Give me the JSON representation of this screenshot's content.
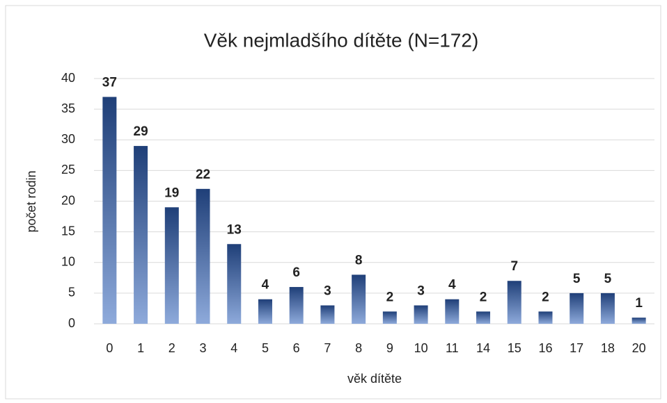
{
  "chart_data": {
    "type": "bar",
    "title": "Věk nejmladšího dítěte (N=172)",
    "x_label": "věk dítěte",
    "y_label": "počet rodin",
    "categories": [
      "0",
      "1",
      "2",
      "3",
      "4",
      "5",
      "6",
      "7",
      "8",
      "9",
      "10",
      "11",
      "14",
      "15",
      "16",
      "17",
      "18",
      "20"
    ],
    "values": [
      37,
      29,
      19,
      22,
      13,
      4,
      6,
      3,
      8,
      2,
      3,
      4,
      2,
      7,
      2,
      5,
      5,
      1
    ],
    "gradient_colors": [
      "#1f3f78",
      "#8eaadb"
    ],
    "ylim": [
      0,
      40
    ],
    "yticks": [
      0,
      5,
      10,
      15,
      20,
      25,
      30,
      35,
      40
    ],
    "grid": true
  }
}
